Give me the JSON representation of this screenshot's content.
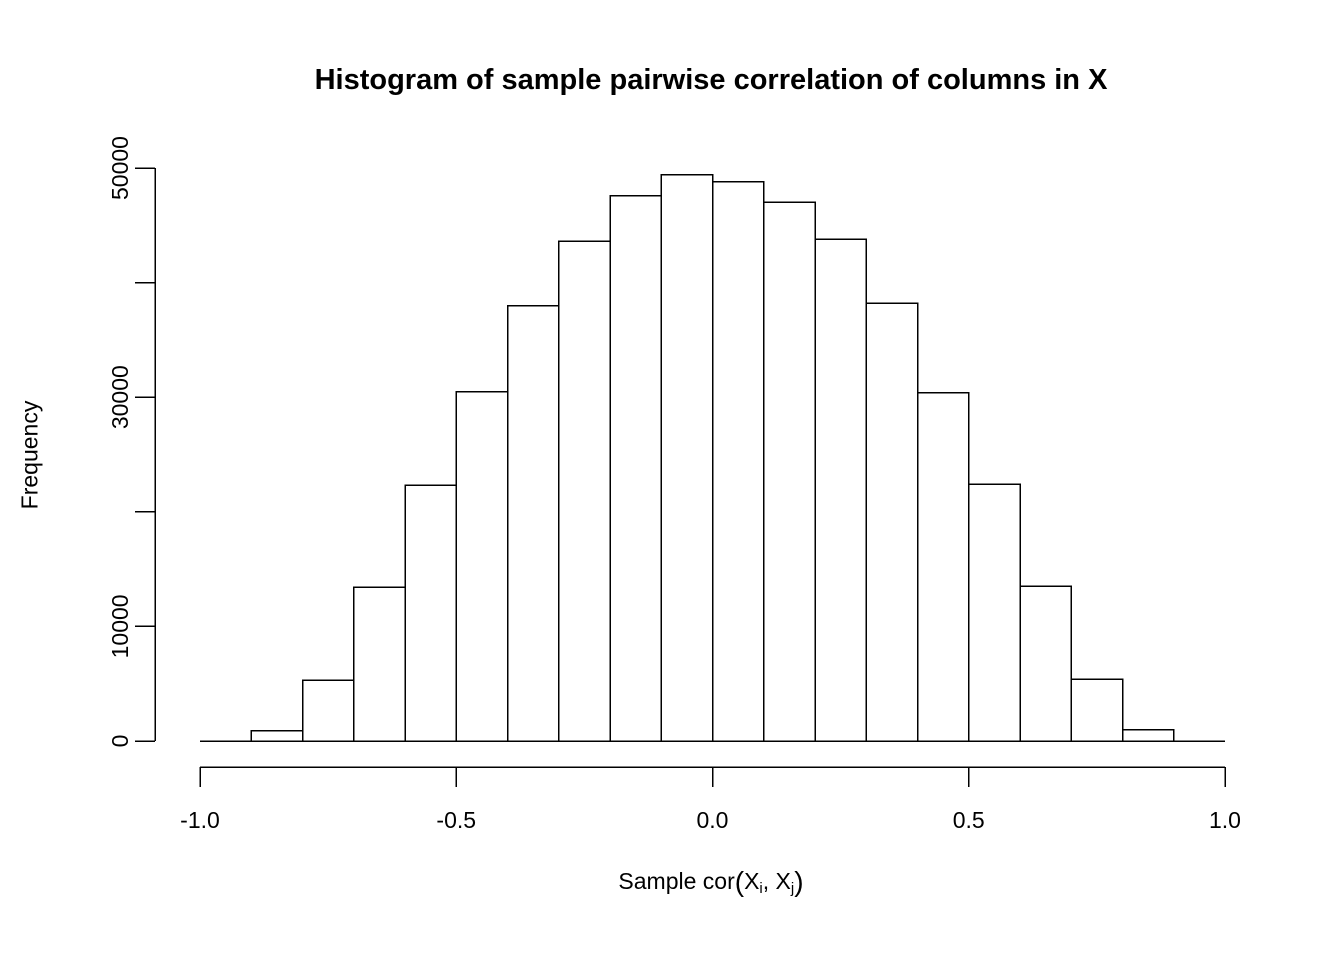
{
  "chart_data": {
    "type": "bar",
    "subtype": "histogram",
    "title": "Histogram of sample pairwise correlation of columns in X",
    "ylabel": "Frequency",
    "xlabel": "Sample cor(Xi, Xj)",
    "xlabel_parts": {
      "lead": "Sample cor",
      "open": "(",
      "x1": "X",
      "sub1": "i",
      "comma": ", ",
      "x2": "X",
      "sub2": "j",
      "close": ")"
    },
    "bin_width": 0.1,
    "bin_edges": [
      -0.9,
      -0.8,
      -0.7,
      -0.6,
      -0.5,
      -0.4,
      -0.3,
      -0.2,
      -0.1,
      0.0,
      0.1,
      0.2,
      0.3,
      0.4,
      0.5,
      0.6,
      0.7,
      0.8,
      0.9
    ],
    "values": [
      900,
      5300,
      13400,
      22300,
      30500,
      38000,
      43600,
      47600,
      49400,
      48800,
      47000,
      43800,
      38200,
      30400,
      22400,
      13500,
      5400,
      1000
    ],
    "xlim": [
      -1.0,
      1.0
    ],
    "ylim": [
      0,
      50000
    ],
    "x_ticks": [
      -1.0,
      -0.5,
      0.0,
      0.5,
      1.0
    ],
    "x_tick_labels": [
      "-1.0",
      "-0.5",
      "0.0",
      "0.5",
      "1.0"
    ],
    "y_ticks": [
      0,
      10000,
      20000,
      30000,
      40000,
      50000
    ],
    "y_tick_labels": [
      "0",
      "10000",
      "",
      "30000",
      "",
      "50000"
    ],
    "grid": "off",
    "legend": "none",
    "bar_fill": "#ffffff",
    "bar_stroke": "#000000",
    "axis_color": "#000000",
    "background": "#ffffff"
  }
}
